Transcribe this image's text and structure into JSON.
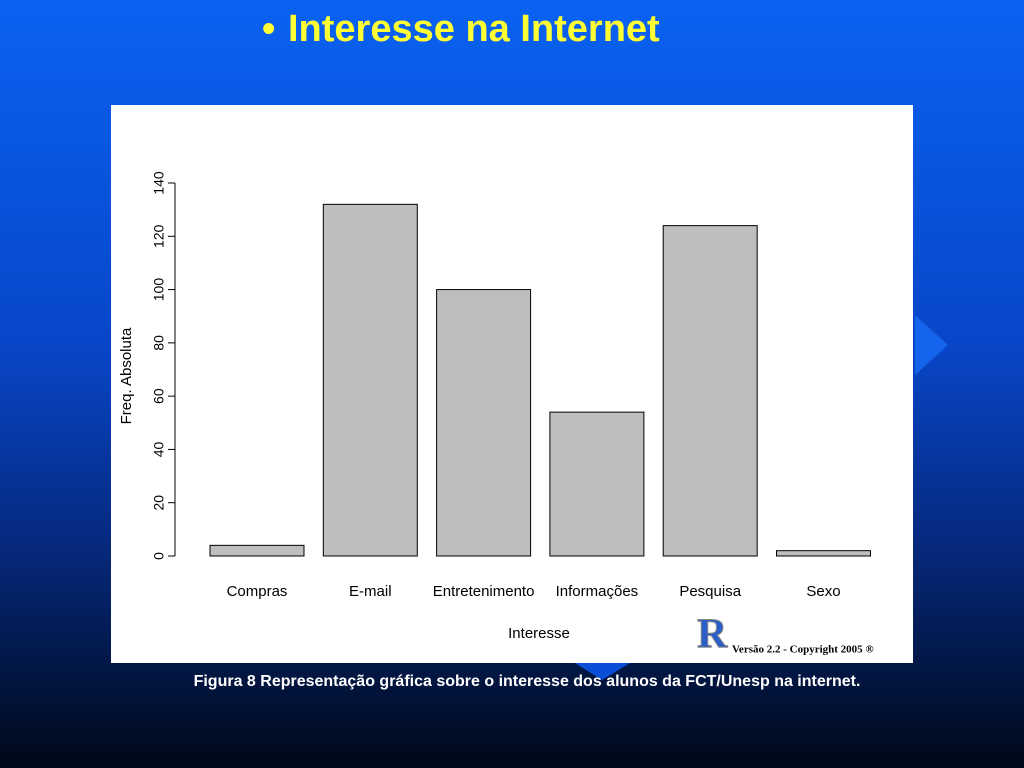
{
  "slide": {
    "title": "Interesse na Internet",
    "caption": "Figura 8 Representação gráfica sobre o interesse dos alunos da FCT/Unesp na internet."
  },
  "chart_data": {
    "type": "bar",
    "x_label": "Interesse",
    "y_label": "Freq. Absoluta",
    "categories": [
      "Compras",
      "E-mail",
      "Entretenimento",
      "Informações",
      "Pesquisa",
      "Sexo"
    ],
    "values": [
      4,
      132,
      100,
      54,
      124,
      2
    ],
    "color": "#bebebe",
    "ylim": [
      0,
      140
    ],
    "yticks": [
      0,
      20,
      40,
      60,
      80,
      100,
      120,
      140
    ]
  },
  "logo": {
    "letter": "R",
    "text": "Versão 2.2 - Copyright 2005 ®"
  }
}
